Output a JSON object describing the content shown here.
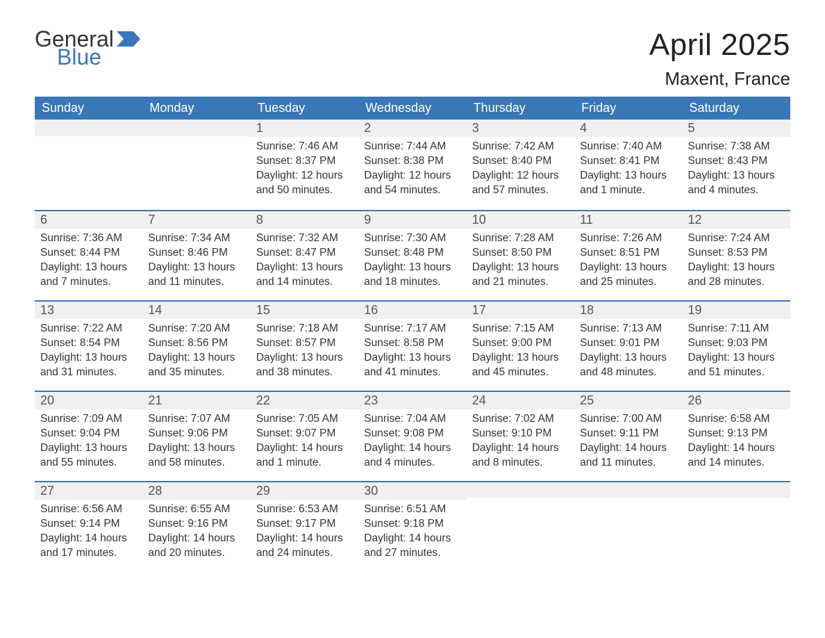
{
  "brand": {
    "word1": "General",
    "word2": "Blue"
  },
  "title": {
    "month_year": "April 2025",
    "location": "Maxent, France"
  },
  "colors": {
    "header_bg": "#3a77b7",
    "header_fg": "#ffffff",
    "row_accent": "#3a77b7",
    "daynum_bg": "#f0f0f0",
    "body_bg": "#ffffff",
    "text": "#333333",
    "brand_blue": "#3a77b7"
  },
  "typography": {
    "title_fontsize_pt": 33,
    "location_fontsize_pt": 20,
    "header_fontsize_pt": 14,
    "daynum_fontsize_pt": 14,
    "body_fontsize_pt": 12,
    "font_family": "Arial"
  },
  "layout": {
    "columns": 7,
    "rows": 5,
    "leading_blanks": 2,
    "trailing_blanks": 3
  },
  "weekdays": [
    "Sunday",
    "Monday",
    "Tuesday",
    "Wednesday",
    "Thursday",
    "Friday",
    "Saturday"
  ],
  "labels": {
    "sunrise": "Sunrise:",
    "sunset": "Sunset:",
    "daylight": "Daylight:"
  },
  "days": [
    {
      "n": 1,
      "sunrise": "7:46 AM",
      "sunset": "8:37 PM",
      "daylight": "12 hours and 50 minutes."
    },
    {
      "n": 2,
      "sunrise": "7:44 AM",
      "sunset": "8:38 PM",
      "daylight": "12 hours and 54 minutes."
    },
    {
      "n": 3,
      "sunrise": "7:42 AM",
      "sunset": "8:40 PM",
      "daylight": "12 hours and 57 minutes."
    },
    {
      "n": 4,
      "sunrise": "7:40 AM",
      "sunset": "8:41 PM",
      "daylight": "13 hours and 1 minute."
    },
    {
      "n": 5,
      "sunrise": "7:38 AM",
      "sunset": "8:43 PM",
      "daylight": "13 hours and 4 minutes."
    },
    {
      "n": 6,
      "sunrise": "7:36 AM",
      "sunset": "8:44 PM",
      "daylight": "13 hours and 7 minutes."
    },
    {
      "n": 7,
      "sunrise": "7:34 AM",
      "sunset": "8:46 PM",
      "daylight": "13 hours and 11 minutes."
    },
    {
      "n": 8,
      "sunrise": "7:32 AM",
      "sunset": "8:47 PM",
      "daylight": "13 hours and 14 minutes."
    },
    {
      "n": 9,
      "sunrise": "7:30 AM",
      "sunset": "8:48 PM",
      "daylight": "13 hours and 18 minutes."
    },
    {
      "n": 10,
      "sunrise": "7:28 AM",
      "sunset": "8:50 PM",
      "daylight": "13 hours and 21 minutes."
    },
    {
      "n": 11,
      "sunrise": "7:26 AM",
      "sunset": "8:51 PM",
      "daylight": "13 hours and 25 minutes."
    },
    {
      "n": 12,
      "sunrise": "7:24 AM",
      "sunset": "8:53 PM",
      "daylight": "13 hours and 28 minutes."
    },
    {
      "n": 13,
      "sunrise": "7:22 AM",
      "sunset": "8:54 PM",
      "daylight": "13 hours and 31 minutes."
    },
    {
      "n": 14,
      "sunrise": "7:20 AM",
      "sunset": "8:56 PM",
      "daylight": "13 hours and 35 minutes."
    },
    {
      "n": 15,
      "sunrise": "7:18 AM",
      "sunset": "8:57 PM",
      "daylight": "13 hours and 38 minutes."
    },
    {
      "n": 16,
      "sunrise": "7:17 AM",
      "sunset": "8:58 PM",
      "daylight": "13 hours and 41 minutes."
    },
    {
      "n": 17,
      "sunrise": "7:15 AM",
      "sunset": "9:00 PM",
      "daylight": "13 hours and 45 minutes."
    },
    {
      "n": 18,
      "sunrise": "7:13 AM",
      "sunset": "9:01 PM",
      "daylight": "13 hours and 48 minutes."
    },
    {
      "n": 19,
      "sunrise": "7:11 AM",
      "sunset": "9:03 PM",
      "daylight": "13 hours and 51 minutes."
    },
    {
      "n": 20,
      "sunrise": "7:09 AM",
      "sunset": "9:04 PM",
      "daylight": "13 hours and 55 minutes."
    },
    {
      "n": 21,
      "sunrise": "7:07 AM",
      "sunset": "9:06 PM",
      "daylight": "13 hours and 58 minutes."
    },
    {
      "n": 22,
      "sunrise": "7:05 AM",
      "sunset": "9:07 PM",
      "daylight": "14 hours and 1 minute."
    },
    {
      "n": 23,
      "sunrise": "7:04 AM",
      "sunset": "9:08 PM",
      "daylight": "14 hours and 4 minutes."
    },
    {
      "n": 24,
      "sunrise": "7:02 AM",
      "sunset": "9:10 PM",
      "daylight": "14 hours and 8 minutes."
    },
    {
      "n": 25,
      "sunrise": "7:00 AM",
      "sunset": "9:11 PM",
      "daylight": "14 hours and 11 minutes."
    },
    {
      "n": 26,
      "sunrise": "6:58 AM",
      "sunset": "9:13 PM",
      "daylight": "14 hours and 14 minutes."
    },
    {
      "n": 27,
      "sunrise": "6:56 AM",
      "sunset": "9:14 PM",
      "daylight": "14 hours and 17 minutes."
    },
    {
      "n": 28,
      "sunrise": "6:55 AM",
      "sunset": "9:16 PM",
      "daylight": "14 hours and 20 minutes."
    },
    {
      "n": 29,
      "sunrise": "6:53 AM",
      "sunset": "9:17 PM",
      "daylight": "14 hours and 24 minutes."
    },
    {
      "n": 30,
      "sunrise": "6:51 AM",
      "sunset": "9:18 PM",
      "daylight": "14 hours and 27 minutes."
    }
  ]
}
